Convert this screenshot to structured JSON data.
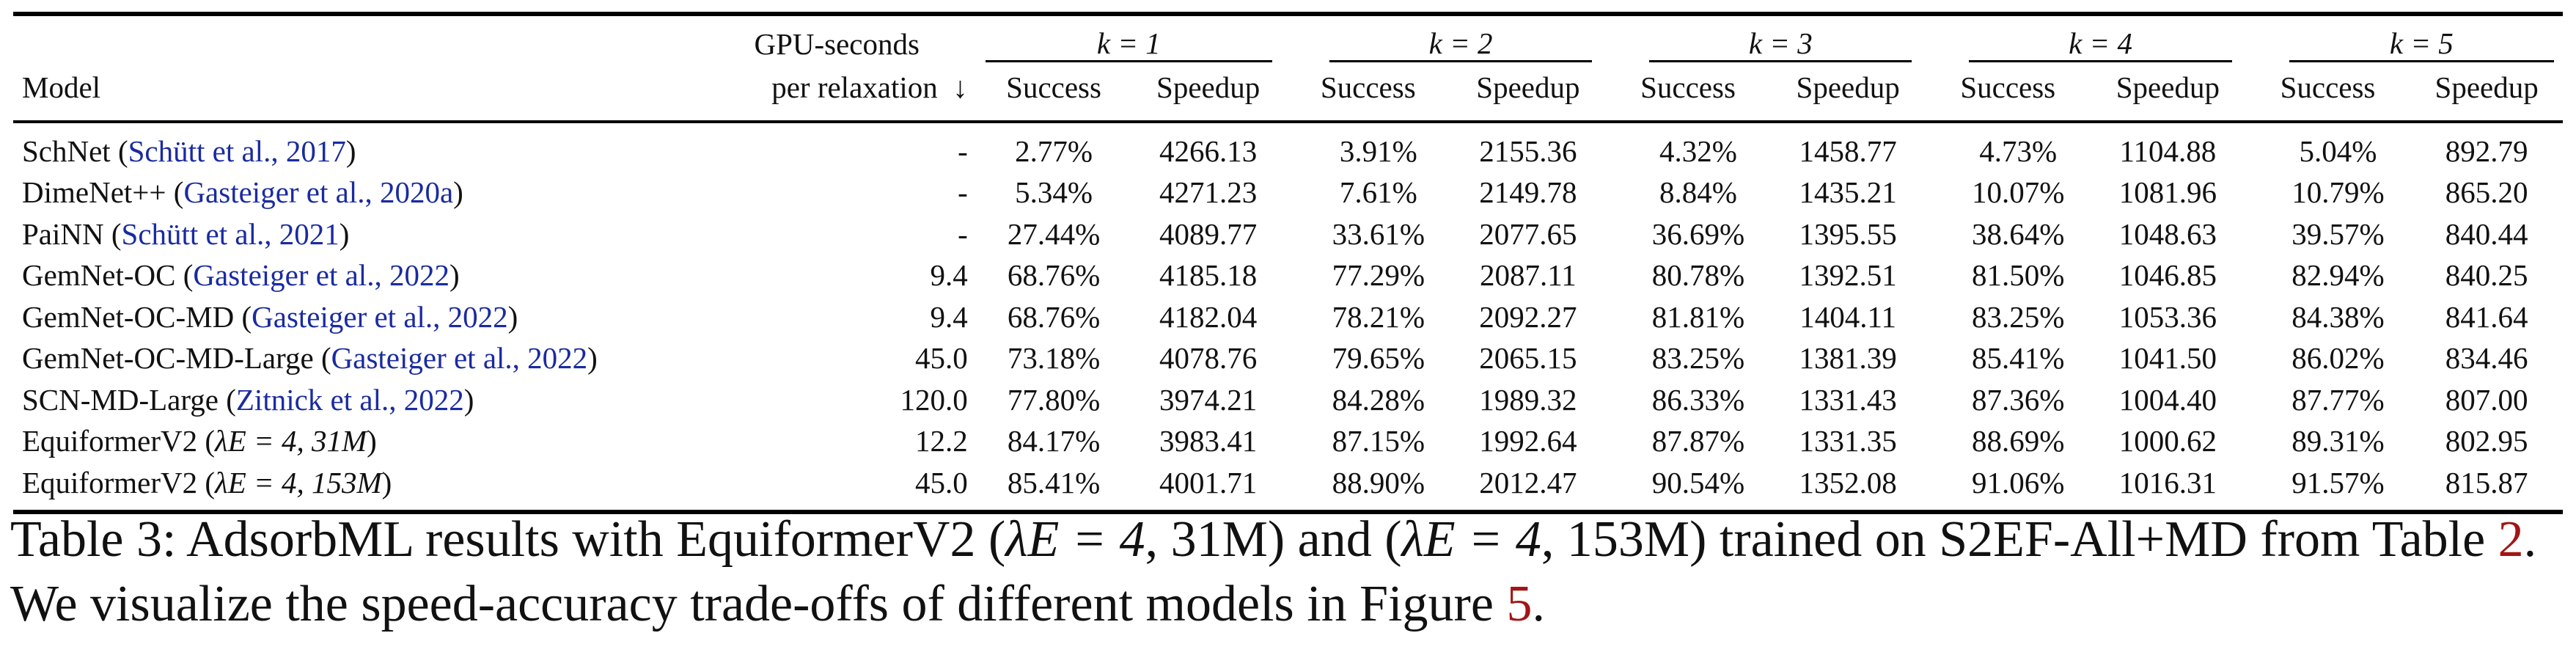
{
  "table": {
    "header": {
      "model": "Model",
      "gpu_line1": "GPU-seconds",
      "gpu_line2": "per relaxation",
      "gpu_arrow": "↓",
      "k_groups": [
        "k = 1",
        "k = 2",
        "k = 3",
        "k = 4",
        "k = 5"
      ],
      "success": "Success",
      "speedup": "Speedup"
    },
    "rows": [
      {
        "name": "SchNet",
        "cite": "Schütt et al., 2017",
        "gpu": "-",
        "cells": [
          "2.77%",
          "4266.13",
          "3.91%",
          "2155.36",
          "4.32%",
          "1458.77",
          "4.73%",
          "1104.88",
          "5.04%",
          "892.79"
        ]
      },
      {
        "name": "DimeNet++",
        "cite": "Gasteiger et al., 2020a",
        "gpu": "-",
        "cells": [
          "5.34%",
          "4271.23",
          "7.61%",
          "2149.78",
          "8.84%",
          "1435.21",
          "10.07%",
          "1081.96",
          "10.79%",
          "865.20"
        ]
      },
      {
        "name": "PaiNN",
        "cite": "Schütt et al., 2021",
        "gpu": "-",
        "cells": [
          "27.44%",
          "4089.77",
          "33.61%",
          "2077.65",
          "36.69%",
          "1395.55",
          "38.64%",
          "1048.63",
          "39.57%",
          "840.44"
        ]
      },
      {
        "name": "GemNet-OC",
        "cite": "Gasteiger et al., 2022",
        "gpu": "9.4",
        "cells": [
          "68.76%",
          "4185.18",
          "77.29%",
          "2087.11",
          "80.78%",
          "1392.51",
          "81.50%",
          "1046.85",
          "82.94%",
          "840.25"
        ]
      },
      {
        "name": "GemNet-OC-MD",
        "cite": "Gasteiger et al., 2022",
        "gpu": "9.4",
        "cells": [
          "68.76%",
          "4182.04",
          "78.21%",
          "2092.27",
          "81.81%",
          "1404.11",
          "83.25%",
          "1053.36",
          "84.38%",
          "841.64"
        ]
      },
      {
        "name": "GemNet-OC-MD-Large",
        "cite": "Gasteiger et al., 2022",
        "gpu": "45.0",
        "cells": [
          "73.18%",
          "4078.76",
          "79.65%",
          "2065.15",
          "83.25%",
          "1381.39",
          "85.41%",
          "1041.50",
          "86.02%",
          "834.46"
        ]
      },
      {
        "name": "SCN-MD-Large",
        "cite": "Zitnick et al., 2022",
        "gpu": "120.0",
        "cells": [
          "77.80%",
          "3974.21",
          "84.28%",
          "1989.32",
          "86.33%",
          "1331.43",
          "87.36%",
          "1004.40",
          "87.77%",
          "807.00"
        ]
      },
      {
        "name": "EquiformerV2",
        "param": "λE = 4, 31M",
        "gpu": "12.2",
        "cells": [
          "84.17%",
          "3983.41",
          "87.15%",
          "1992.64",
          "87.87%",
          "1331.35",
          "88.69%",
          "1000.62",
          "89.31%",
          "802.95"
        ]
      },
      {
        "name": "EquiformerV2",
        "param": "λE = 4, 153M",
        "gpu": "45.0",
        "cells": [
          "85.41%",
          "4001.71",
          "88.90%",
          "2012.47",
          "90.54%",
          "1352.08",
          "91.06%",
          "1016.31",
          "91.57%",
          "815.87"
        ]
      }
    ]
  },
  "caption": {
    "label": "Table 3:",
    "text1": "AdsorbML results with EquiformerV2 (",
    "p1": "λE = 4",
    "text2": ", 31M) and (",
    "p2": "λE = 4",
    "text3": ", 153M) trained on S2EF-All+MD from Table ",
    "ref_table": "2",
    "text4": ". We visualize the speed-accuracy trade-offs of different models in Figure ",
    "ref_figure": "5",
    "text5": "."
  }
}
